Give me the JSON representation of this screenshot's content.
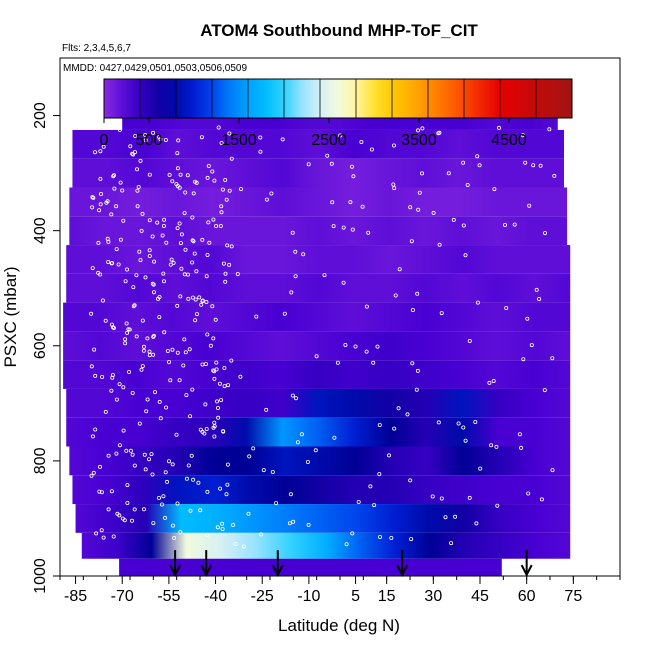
{
  "chart_data": {
    "type": "heatmap",
    "title": "ATOM4 Southbound MHP-ToF_CIT",
    "flights_note": "Flts: 2,3,4,5,6,7",
    "date_note": "MMDD: 0427,0429,0501,0503,0506,0509",
    "xlabel": "Latitude (deg N)",
    "ylabel": "PSXC (mbar)",
    "xlim": [
      -90,
      90
    ],
    "ylim": [
      1000,
      100
    ],
    "x_ticks": [
      "-85",
      "-70",
      "-55",
      "-40",
      "-25",
      "-10",
      "5",
      "15",
      "30",
      "45",
      "60",
      "75"
    ],
    "x_tick_values": [
      -85,
      -70,
      -55,
      -40,
      -25,
      -10,
      5,
      15,
      30,
      45,
      60,
      75
    ],
    "y_ticks": [
      "200",
      "400",
      "600",
      "800",
      "1000"
    ],
    "y_tick_values": [
      200,
      400,
      600,
      800,
      1000
    ],
    "colorbar": {
      "min": 0,
      "max": 5200,
      "ticks": [
        "0",
        "500",
        "1500",
        "2500",
        "3500",
        "4500"
      ],
      "tick_values": [
        0,
        500,
        1500,
        2500,
        3500,
        4500
      ],
      "divisions": [
        0,
        400,
        800,
        1200,
        1600,
        2000,
        2400,
        2800,
        3200,
        3600,
        4000,
        4400,
        4800,
        5200
      ]
    },
    "arrows_latitude": [
      -53,
      -43,
      -20,
      20,
      60
    ],
    "rows": [
      {
        "p": 200,
        "lat": [
          -70,
          70
        ],
        "vals": [
          300,
          300,
          250,
          250,
          300,
          300,
          250,
          250,
          300,
          300,
          300,
          300,
          250,
          300,
          250
        ]
      },
      {
        "p": 250,
        "lat": [
          -86,
          72
        ],
        "vals": [
          250,
          250,
          300,
          200,
          250,
          250,
          250,
          200,
          300,
          250,
          250,
          200,
          250,
          250,
          250
        ]
      },
      {
        "p": 300,
        "lat": [
          -86,
          72
        ],
        "vals": [
          200,
          200,
          250,
          200,
          150,
          200,
          250,
          150,
          100,
          150,
          200,
          150,
          200,
          200,
          200
        ]
      },
      {
        "p": 350,
        "lat": [
          -87,
          73
        ],
        "vals": [
          150,
          150,
          100,
          150,
          100,
          150,
          200,
          150,
          100,
          150,
          100,
          100,
          150,
          150,
          150
        ]
      },
      {
        "p": 400,
        "lat": [
          -87,
          73
        ],
        "vals": [
          200,
          150,
          150,
          200,
          150,
          150,
          150,
          200,
          150,
          200,
          150,
          200,
          150,
          200,
          200
        ]
      },
      {
        "p": 450,
        "lat": [
          -88,
          74
        ],
        "vals": [
          200,
          200,
          150,
          200,
          250,
          150,
          150,
          200,
          200,
          150,
          200,
          250,
          200,
          200,
          200
        ]
      },
      {
        "p": 500,
        "lat": [
          -88,
          74
        ],
        "vals": [
          200,
          200,
          250,
          200,
          250,
          200,
          200,
          250,
          200,
          200,
          250,
          200,
          250,
          200,
          250
        ]
      },
      {
        "p": 550,
        "lat": [
          -89,
          74
        ],
        "vals": [
          250,
          250,
          200,
          250,
          200,
          250,
          300,
          250,
          200,
          250,
          300,
          250,
          200,
          250,
          250
        ]
      },
      {
        "p": 600,
        "lat": [
          -89,
          74
        ],
        "vals": [
          200,
          250,
          200,
          250,
          300,
          250,
          200,
          250,
          300,
          350,
          300,
          250,
          200,
          250,
          200
        ]
      },
      {
        "p": 650,
        "lat": [
          -89,
          74
        ],
        "vals": [
          250,
          250,
          300,
          250,
          300,
          350,
          300,
          400,
          350,
          400,
          350,
          300,
          250,
          300,
          250
        ]
      },
      {
        "p": 700,
        "lat": [
          -88,
          74
        ],
        "vals": [
          250,
          250,
          300,
          300,
          350,
          400,
          350,
          900,
          800,
          600,
          500,
          900,
          400,
          300,
          250
        ]
      },
      {
        "p": 750,
        "lat": [
          -88,
          74
        ],
        "vals": [
          250,
          300,
          300,
          400,
          450,
          800,
          1500,
          1300,
          1000,
          700,
          500,
          800,
          300,
          300,
          250
        ]
      },
      {
        "p": 800,
        "lat": [
          -87,
          74
        ],
        "vals": [
          250,
          300,
          400,
          500,
          700,
          700,
          900,
          800,
          700,
          500,
          400,
          700,
          500,
          300,
          250
        ]
      },
      {
        "p": 850,
        "lat": [
          -86,
          74
        ],
        "vals": [
          250,
          300,
          450,
          900,
          1000,
          800,
          700,
          600,
          500,
          500,
          400,
          350,
          300,
          300,
          250
        ]
      },
      {
        "p": 900,
        "lat": [
          -85,
          74
        ],
        "vals": [
          250,
          350,
          500,
          1800,
          1700,
          1500,
          1400,
          1300,
          1200,
          1000,
          800,
          600,
          400,
          300,
          250
        ]
      },
      {
        "p": 950,
        "lat": [
          -83,
          74
        ],
        "vals": [
          250,
          350,
          700,
          2600,
          2400,
          2200,
          2000,
          1700,
          1300,
          1000,
          700,
          500,
          400,
          300,
          250
        ]
      },
      {
        "p": 990,
        "lat": [
          -71,
          52
        ],
        "vals": [
          300,
          300,
          300,
          300,
          300,
          300,
          300,
          300,
          300,
          300,
          300,
          300,
          300,
          300,
          300
        ]
      }
    ]
  }
}
